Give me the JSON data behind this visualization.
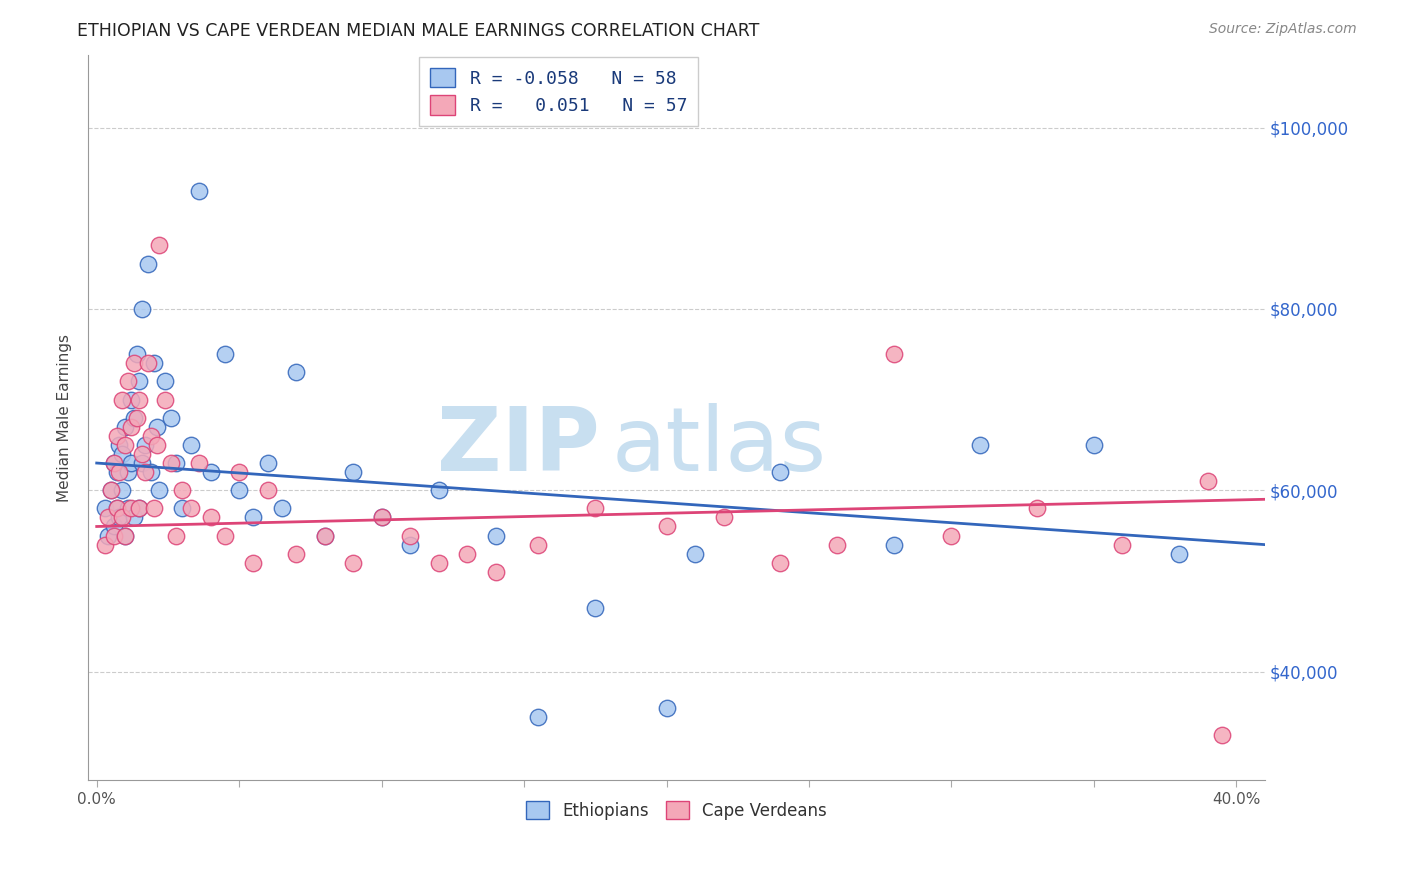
{
  "title": "ETHIOPIAN VS CAPE VERDEAN MEDIAN MALE EARNINGS CORRELATION CHART",
  "source": "Source: ZipAtlas.com",
  "ylabel": "Median Male Earnings",
  "ylim": [
    28000,
    108000
  ],
  "xlim": [
    -0.003,
    0.41
  ],
  "watermark_zip": "ZIP",
  "watermark_atlas": "atlas",
  "ethiopians_color": "#a8c8f0",
  "cape_verdeans_color": "#f4a8b8",
  "trend_eth_color": "#3366bb",
  "trend_cape_color": "#dd4477",
  "ethiopians_x": [
    0.003,
    0.004,
    0.005,
    0.006,
    0.006,
    0.007,
    0.007,
    0.008,
    0.008,
    0.009,
    0.009,
    0.01,
    0.01,
    0.011,
    0.011,
    0.012,
    0.012,
    0.013,
    0.013,
    0.014,
    0.015,
    0.015,
    0.016,
    0.016,
    0.017,
    0.018,
    0.019,
    0.02,
    0.021,
    0.022,
    0.024,
    0.026,
    0.028,
    0.03,
    0.033,
    0.036,
    0.04,
    0.045,
    0.05,
    0.055,
    0.06,
    0.065,
    0.07,
    0.08,
    0.09,
    0.1,
    0.11,
    0.12,
    0.14,
    0.155,
    0.175,
    0.2,
    0.21,
    0.24,
    0.28,
    0.31,
    0.35,
    0.38
  ],
  "ethiopians_y": [
    58000,
    55000,
    60000,
    63000,
    56000,
    62000,
    58000,
    65000,
    57000,
    64000,
    60000,
    67000,
    55000,
    62000,
    58000,
    70000,
    63000,
    68000,
    57000,
    75000,
    72000,
    58000,
    80000,
    63000,
    65000,
    85000,
    62000,
    74000,
    67000,
    60000,
    72000,
    68000,
    63000,
    58000,
    65000,
    93000,
    62000,
    75000,
    60000,
    57000,
    63000,
    58000,
    73000,
    55000,
    62000,
    57000,
    54000,
    60000,
    55000,
    35000,
    47000,
    36000,
    53000,
    62000,
    54000,
    65000,
    65000,
    53000
  ],
  "cape_verdeans_x": [
    0.003,
    0.004,
    0.005,
    0.006,
    0.006,
    0.007,
    0.007,
    0.008,
    0.009,
    0.009,
    0.01,
    0.01,
    0.011,
    0.012,
    0.012,
    0.013,
    0.014,
    0.015,
    0.015,
    0.016,
    0.017,
    0.018,
    0.019,
    0.02,
    0.021,
    0.022,
    0.024,
    0.026,
    0.028,
    0.03,
    0.033,
    0.036,
    0.04,
    0.045,
    0.05,
    0.055,
    0.06,
    0.07,
    0.08,
    0.09,
    0.1,
    0.11,
    0.12,
    0.13,
    0.14,
    0.155,
    0.175,
    0.2,
    0.22,
    0.24,
    0.26,
    0.28,
    0.3,
    0.33,
    0.36,
    0.39,
    0.395
  ],
  "cape_verdeans_y": [
    54000,
    57000,
    60000,
    63000,
    55000,
    58000,
    66000,
    62000,
    70000,
    57000,
    65000,
    55000,
    72000,
    67000,
    58000,
    74000,
    68000,
    70000,
    58000,
    64000,
    62000,
    74000,
    66000,
    58000,
    65000,
    87000,
    70000,
    63000,
    55000,
    60000,
    58000,
    63000,
    57000,
    55000,
    62000,
    52000,
    60000,
    53000,
    55000,
    52000,
    57000,
    55000,
    52000,
    53000,
    51000,
    54000,
    58000,
    56000,
    57000,
    52000,
    54000,
    75000,
    55000,
    58000,
    54000,
    61000,
    33000
  ],
  "trend_eth_x0": 0.0,
  "trend_eth_x1": 0.41,
  "trend_eth_y0": 63000,
  "trend_eth_y1": 54000,
  "trend_cape_x0": 0.0,
  "trend_cape_x1": 0.41,
  "trend_cape_y0": 56000,
  "trend_cape_y1": 59000
}
